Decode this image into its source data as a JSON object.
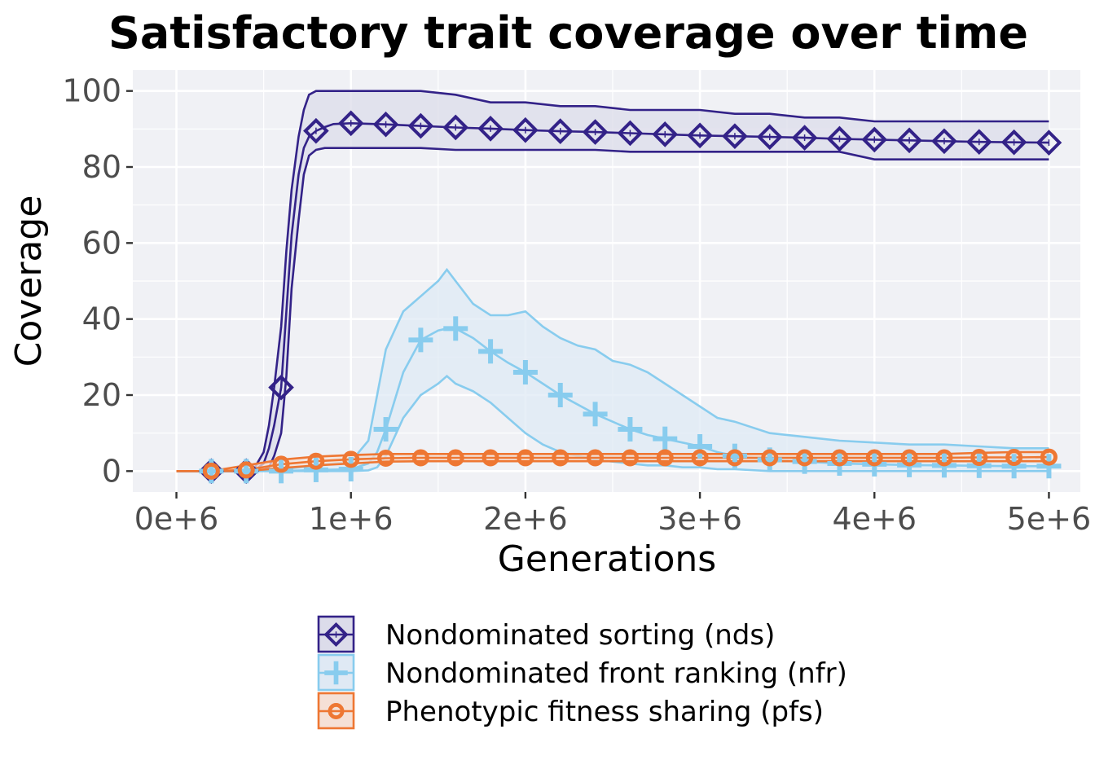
{
  "chart_data": {
    "type": "line",
    "title": "Satisfactory trait coverage over time",
    "xlabel": "Generations",
    "ylabel": "Coverage",
    "xlim": [
      -250000,
      5180000
    ],
    "ylim": [
      -5.5,
      105.5
    ],
    "x_ticks": [
      0,
      1000000,
      2000000,
      3000000,
      4000000,
      5000000
    ],
    "x_tick_labels": [
      "0e+6",
      "1e+6",
      "2e+6",
      "3e+6",
      "4e+6",
      "5e+6"
    ],
    "y_ticks": [
      0,
      20,
      40,
      60,
      80,
      100
    ],
    "y_tick_labels": [
      "0",
      "20",
      "40",
      "60",
      "80",
      "100"
    ],
    "grid": true,
    "legend_position": "bottom",
    "panel_background": "#f0f1f5",
    "series": [
      {
        "name": "Nondominated sorting (nds)",
        "color": "#332288",
        "fill": "#dcdcea",
        "marker": "diamond",
        "x": [
          0,
          400000,
          450000,
          500000,
          530000,
          560000,
          600000,
          630000,
          660000,
          700000,
          730000,
          760000,
          800000,
          850000,
          900000,
          1000000,
          1200000,
          1400000,
          1600000,
          1800000,
          2000000,
          2200000,
          2400000,
          2600000,
          2800000,
          3000000,
          3200000,
          3400000,
          3600000,
          3800000,
          4000000,
          4200000,
          4400000,
          4600000,
          4800000,
          5000000
        ],
        "mean": [
          0,
          0,
          0.3,
          2,
          6,
          12,
          22,
          42,
          62,
          78,
          85,
          88,
          89.5,
          90.5,
          91.3,
          91.5,
          91.2,
          90.8,
          90.4,
          90.1,
          89.7,
          89.4,
          89.2,
          88.9,
          88.6,
          88.3,
          88.1,
          87.9,
          87.7,
          87.4,
          87.2,
          87.0,
          86.8,
          86.6,
          86.5,
          86.4
        ],
        "upper": [
          0,
          0,
          1,
          5,
          12,
          22,
          38,
          58,
          74,
          88,
          95,
          99,
          100,
          100,
          100,
          100,
          100,
          100,
          99,
          97,
          97,
          96,
          96,
          95,
          95,
          95,
          94,
          94,
          93,
          93,
          92,
          92,
          92,
          92,
          92,
          92
        ],
        "lower": [
          0,
          0,
          0,
          0.3,
          1,
          4,
          10,
          25,
          48,
          66,
          78,
          83,
          84.5,
          85,
          85,
          85,
          85,
          85,
          84.5,
          84.5,
          84.5,
          84.5,
          84.5,
          84,
          84,
          84,
          84,
          84,
          84,
          84,
          82,
          82,
          82,
          82,
          82,
          82
        ]
      },
      {
        "name": "Nondominated front ranking (nfr)",
        "color": "#88ccee",
        "fill": "#dfe9f4",
        "marker": "plus",
        "x": [
          0,
          200000,
          400000,
          600000,
          800000,
          1000000,
          1100000,
          1150000,
          1200000,
          1300000,
          1400000,
          1500000,
          1550000,
          1600000,
          1700000,
          1800000,
          1900000,
          2000000,
          2100000,
          2200000,
          2300000,
          2400000,
          2500000,
          2600000,
          2700000,
          2800000,
          2900000,
          3000000,
          3100000,
          3200000,
          3400000,
          3600000,
          3800000,
          4000000,
          4200000,
          4400000,
          4600000,
          4800000,
          5000000
        ],
        "mean": [
          0,
          0,
          0,
          0,
          0.3,
          0.5,
          2,
          5,
          11,
          26,
          34.5,
          37,
          37.5,
          37.5,
          35,
          31.5,
          28.5,
          26,
          23,
          20,
          17.5,
          15,
          13,
          11,
          9.5,
          8.5,
          7.5,
          6.5,
          5,
          4,
          3,
          2.5,
          2,
          1.8,
          1.6,
          1.5,
          1.4,
          1.3,
          1.3
        ],
        "upper": [
          0,
          0,
          0,
          0.5,
          1.5,
          2.5,
          8,
          20,
          32,
          42,
          46,
          50,
          53,
          50,
          44,
          41,
          41,
          42,
          38,
          35,
          33,
          32,
          29,
          28,
          26,
          23,
          20,
          17,
          14,
          13,
          10,
          9,
          8,
          7.5,
          7,
          7,
          6.5,
          6,
          6
        ],
        "lower": [
          0,
          0,
          0,
          0,
          0,
          0,
          0.2,
          1,
          4,
          14,
          20,
          23,
          25,
          23,
          21,
          18,
          14,
          10,
          7,
          5,
          4,
          3,
          2.5,
          2,
          1.5,
          1.5,
          1,
          1,
          0.5,
          0.5,
          0,
          0,
          0,
          0,
          0,
          0,
          0,
          0,
          0
        ]
      },
      {
        "name": "Phenotypic fitness sharing (pfs)",
        "color": "#ee7733",
        "fill": "#f5e0d6",
        "marker": "circle",
        "x": [
          0,
          200000,
          400000,
          600000,
          800000,
          1000000,
          1200000,
          1400000,
          1600000,
          1800000,
          2000000,
          2200000,
          2400000,
          2600000,
          2800000,
          3000000,
          3200000,
          3400000,
          3600000,
          3800000,
          4000000,
          4200000,
          4400000,
          4600000,
          4800000,
          5000000
        ],
        "mean": [
          0,
          0,
          0.3,
          1.8,
          2.6,
          3.1,
          3.4,
          3.5,
          3.5,
          3.5,
          3.5,
          3.5,
          3.5,
          3.5,
          3.5,
          3.5,
          3.5,
          3.5,
          3.5,
          3.5,
          3.5,
          3.5,
          3.5,
          3.6,
          3.6,
          3.7
        ],
        "upper": [
          0,
          0,
          1.5,
          3,
          3.8,
          4.2,
          4.5,
          4.5,
          4.5,
          4.5,
          4.5,
          4.5,
          4.5,
          4.5,
          4.5,
          4.5,
          4.5,
          4.5,
          4.5,
          4.5,
          4.5,
          4.5,
          4.5,
          4.8,
          5,
          5
        ],
        "lower": [
          0,
          0,
          0,
          0.8,
          1.5,
          2,
          2.5,
          2.6,
          2.6,
          2.6,
          2.6,
          2.6,
          2.6,
          2.6,
          2.6,
          2.6,
          2.6,
          2.6,
          2.6,
          2.6,
          2.6,
          2.6,
          2.6,
          2.6,
          2.6,
          2.6
        ]
      }
    ],
    "marker_x": [
      200000,
      400000,
      600000,
      800000,
      1000000,
      1200000,
      1400000,
      1600000,
      1800000,
      2000000,
      2200000,
      2400000,
      2600000,
      2800000,
      3000000,
      3200000,
      3400000,
      3600000,
      3800000,
      4000000,
      4200000,
      4400000,
      4600000,
      4800000,
      5000000
    ]
  }
}
